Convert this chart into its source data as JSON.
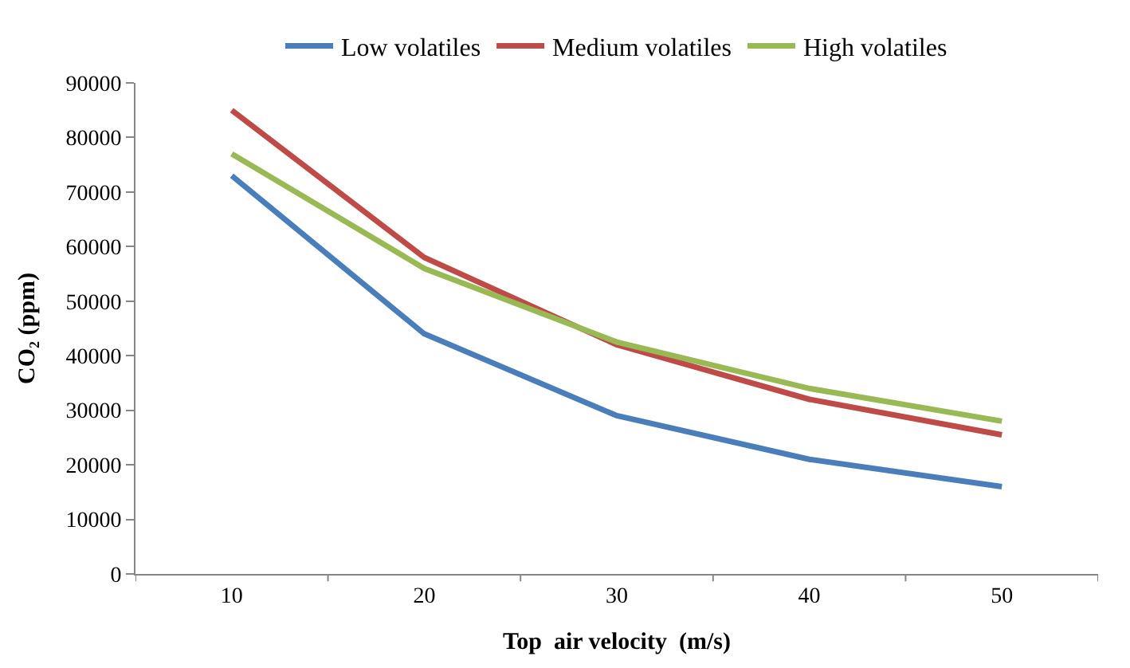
{
  "chart_data": {
    "type": "line",
    "xlabel": "Top  air velocity  (m/s)",
    "ylabel": "CO₂ (ppm)",
    "categories": [
      "10",
      "20",
      "30",
      "40",
      "50"
    ],
    "series": [
      {
        "name": "Low volatiles",
        "color": "#4a7ebb",
        "values": [
          73000,
          44000,
          29000,
          21000,
          16000
        ]
      },
      {
        "name": "Medium volatiles",
        "color": "#be4b48",
        "values": [
          85000,
          58000,
          42000,
          32000,
          25500
        ]
      },
      {
        "name": "High volatiles",
        "color": "#98b954",
        "values": [
          77000,
          56000,
          42500,
          34000,
          28000
        ]
      }
    ],
    "ylim": [
      0,
      90000
    ],
    "yticks": [
      0,
      10000,
      20000,
      30000,
      40000,
      50000,
      60000,
      70000,
      80000,
      90000
    ],
    "legend": "top",
    "marker": "none",
    "line_style": "solid"
  }
}
